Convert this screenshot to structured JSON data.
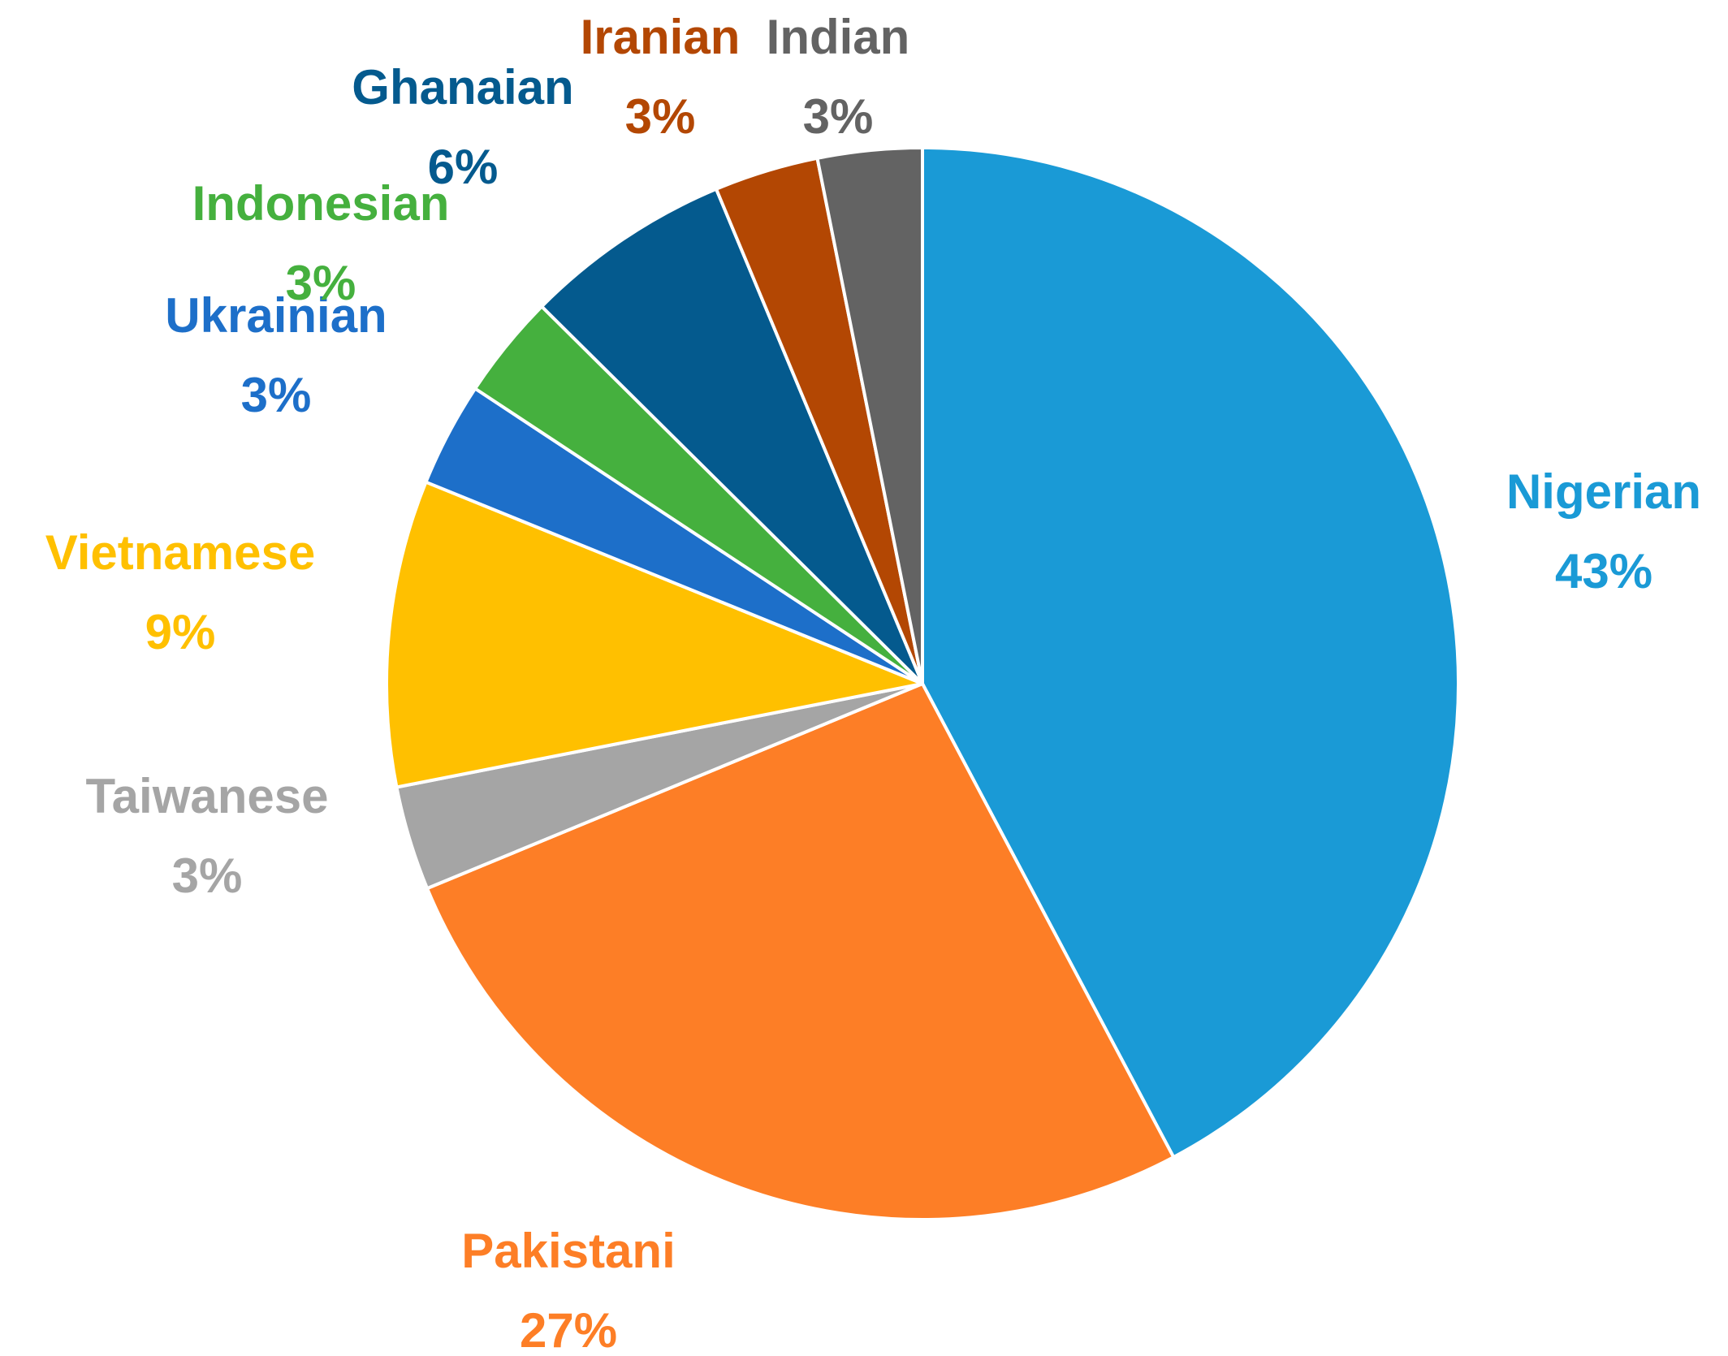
{
  "chart_data": {
    "type": "pie",
    "title": "",
    "start_angle_deg": 0,
    "direction": "clockwise",
    "slices": [
      {
        "label": "Nigerian",
        "percent_label": "43%",
        "value": 43,
        "color": "#1a9ad6"
      },
      {
        "label": "Pakistani",
        "percent_label": "27%",
        "value": 27,
        "color": "#fd7e26"
      },
      {
        "label": "Taiwanese",
        "percent_label": "3%",
        "value": 3.2,
        "color": "#a5a5a5"
      },
      {
        "label": "Vietnamese",
        "percent_label": "9%",
        "value": 9.4,
        "color": "#ffc000"
      },
      {
        "label": "Ukrainian",
        "percent_label": "3%",
        "value": 3.2,
        "color": "#1d6fc9"
      },
      {
        "label": "Indonesian",
        "percent_label": "3%",
        "value": 3.2,
        "color": "#45b03e"
      },
      {
        "label": "Ghanaian",
        "percent_label": "6%",
        "value": 6.4,
        "color": "#045a8e"
      },
      {
        "label": "Iranian",
        "percent_label": "3%",
        "value": 3.2,
        "color": "#b34703"
      },
      {
        "label": "Indian",
        "percent_label": "3%",
        "value": 3.2,
        "color": "#636363"
      }
    ],
    "legend": "none",
    "data_labels": "outside, category name and percentage"
  }
}
